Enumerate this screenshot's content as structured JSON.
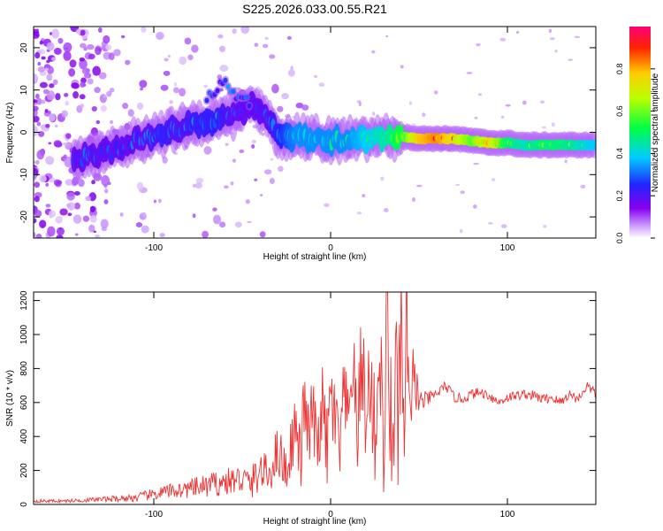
{
  "figure": {
    "title": "S225.2026.033.00.55.R21"
  },
  "chart_data": [
    {
      "type": "heatmap",
      "title": "S225.2026.033.00.55.R21",
      "xlabel": "Height of straight line (km)",
      "ylabel": "Frequency (Hz)",
      "xlim": [
        -168,
        150
      ],
      "ylim": [
        -25,
        25
      ],
      "x_ticks": [
        -100,
        0,
        100
      ],
      "x_tick_labels": [
        "-100",
        "0",
        "100"
      ],
      "y_ticks": [
        -20,
        -10,
        0,
        10,
        20
      ],
      "y_tick_labels": [
        "-20",
        "-10",
        "0",
        "10",
        "20"
      ],
      "colorbar": {
        "label": "Normalized spectral amplitude",
        "range": [
          0,
          1
        ],
        "ticks": [
          0.0,
          0.2,
          0.4,
          0.6,
          0.8
        ],
        "tick_labels": [
          "0.0",
          "0.2",
          "0.4",
          "0.6",
          "0.8"
        ],
        "colormap": "rainbow (white-violet-blue-cyan-green-yellow-red-magenta)"
      },
      "ridge": {
        "description": "dominant frequency ridge versus height",
        "x": [
          -140,
          -128,
          -115,
          -105,
          -95,
          -85,
          -75,
          -65,
          -55,
          -45,
          -40,
          -35,
          -30,
          -25,
          -20,
          -10,
          0,
          10,
          20,
          30,
          40,
          50,
          60,
          70,
          80,
          90,
          100,
          110,
          120,
          130,
          140,
          148
        ],
        "y": [
          -6,
          -5,
          -3,
          -1,
          0,
          1,
          2,
          3,
          4,
          6,
          5.5,
          3,
          0,
          -1,
          -1,
          -1.5,
          -2,
          -2,
          -1.5,
          -1,
          -1,
          -1.5,
          -1.5,
          -1.5,
          -2,
          -2.5,
          -2.5,
          -3,
          -3,
          -3,
          -3,
          -3
        ],
        "amplitude": [
          0.3,
          0.3,
          0.3,
          0.3,
          0.35,
          0.3,
          0.35,
          0.35,
          0.3,
          0.3,
          0.3,
          0.3,
          0.35,
          0.4,
          0.45,
          0.45,
          0.45,
          0.45,
          0.5,
          0.55,
          0.65,
          0.9,
          0.95,
          0.85,
          0.7,
          0.85,
          0.6,
          0.55,
          0.6,
          0.6,
          0.55,
          0.5
        ]
      },
      "secondary_ridge": {
        "description": "weaker upper branch",
        "x": [
          -70,
          -65,
          -60,
          -55,
          -50,
          -45
        ],
        "y": [
          8,
          10,
          12,
          9,
          8,
          7
        ]
      }
    },
    {
      "type": "line",
      "xlabel": "Height of straight line (km)",
      "ylabel": "SNR (10 * v/v)",
      "xlim": [
        -168,
        150
      ],
      "ylim": [
        0,
        1250
      ],
      "x_ticks": [
        -100,
        0,
        100
      ],
      "x_tick_labels": [
        "-100",
        "0",
        "100"
      ],
      "y_ticks": [
        0,
        200,
        400,
        600,
        800,
        1000,
        1200
      ],
      "y_tick_labels": [
        "0",
        "200",
        "400",
        "600",
        "800",
        "1000",
        "1200"
      ],
      "series": [
        {
          "color": "#ee3333",
          "x": [
            -168,
            -150,
            -130,
            -110,
            -100,
            -90,
            -80,
            -70,
            -60,
            -50,
            -45,
            -40,
            -35,
            -30,
            -25,
            -20,
            -17,
            -15,
            -12,
            -10,
            -8,
            -5,
            -2,
            0,
            2,
            5,
            8,
            10,
            12,
            15,
            18,
            20,
            22,
            25,
            28,
            30,
            32,
            35,
            37,
            38,
            40,
            42,
            43,
            45,
            47,
            50,
            55,
            60,
            65,
            70,
            75,
            80,
            85,
            90,
            95,
            100,
            105,
            110,
            115,
            120,
            125,
            130,
            135,
            140,
            145,
            150
          ],
          "y": [
            20,
            20,
            30,
            40,
            60,
            80,
            90,
            110,
            130,
            150,
            120,
            200,
            170,
            320,
            200,
            470,
            250,
            600,
            350,
            610,
            250,
            600,
            300,
            650,
            520,
            300,
            650,
            380,
            870,
            400,
            930,
            350,
            800,
            400,
            900,
            250,
            1150,
            150,
            1250,
            100,
            1150,
            80,
            1250,
            300,
            800,
            600,
            620,
            650,
            700,
            630,
            620,
            650,
            660,
            640,
            600,
            630,
            640,
            650,
            640,
            620,
            630,
            600,
            650,
            620,
            700,
            650
          ],
          "noise_amplitude": [
            10,
            10,
            15,
            25,
            35,
            45,
            55,
            70,
            80,
            90,
            100,
            120,
            120,
            150,
            160,
            180,
            200,
            220,
            230,
            240,
            240,
            250,
            260,
            260,
            260,
            270,
            280,
            280,
            300,
            300,
            320,
            320,
            330,
            340,
            360,
            380,
            420,
            460,
            480,
            480,
            460,
            420,
            400,
            300,
            220,
            80,
            40,
            35,
            30,
            30,
            30,
            30,
            30,
            30,
            30,
            30,
            30,
            30,
            30,
            30,
            30,
            30,
            30,
            30,
            30,
            30
          ]
        }
      ]
    }
  ]
}
